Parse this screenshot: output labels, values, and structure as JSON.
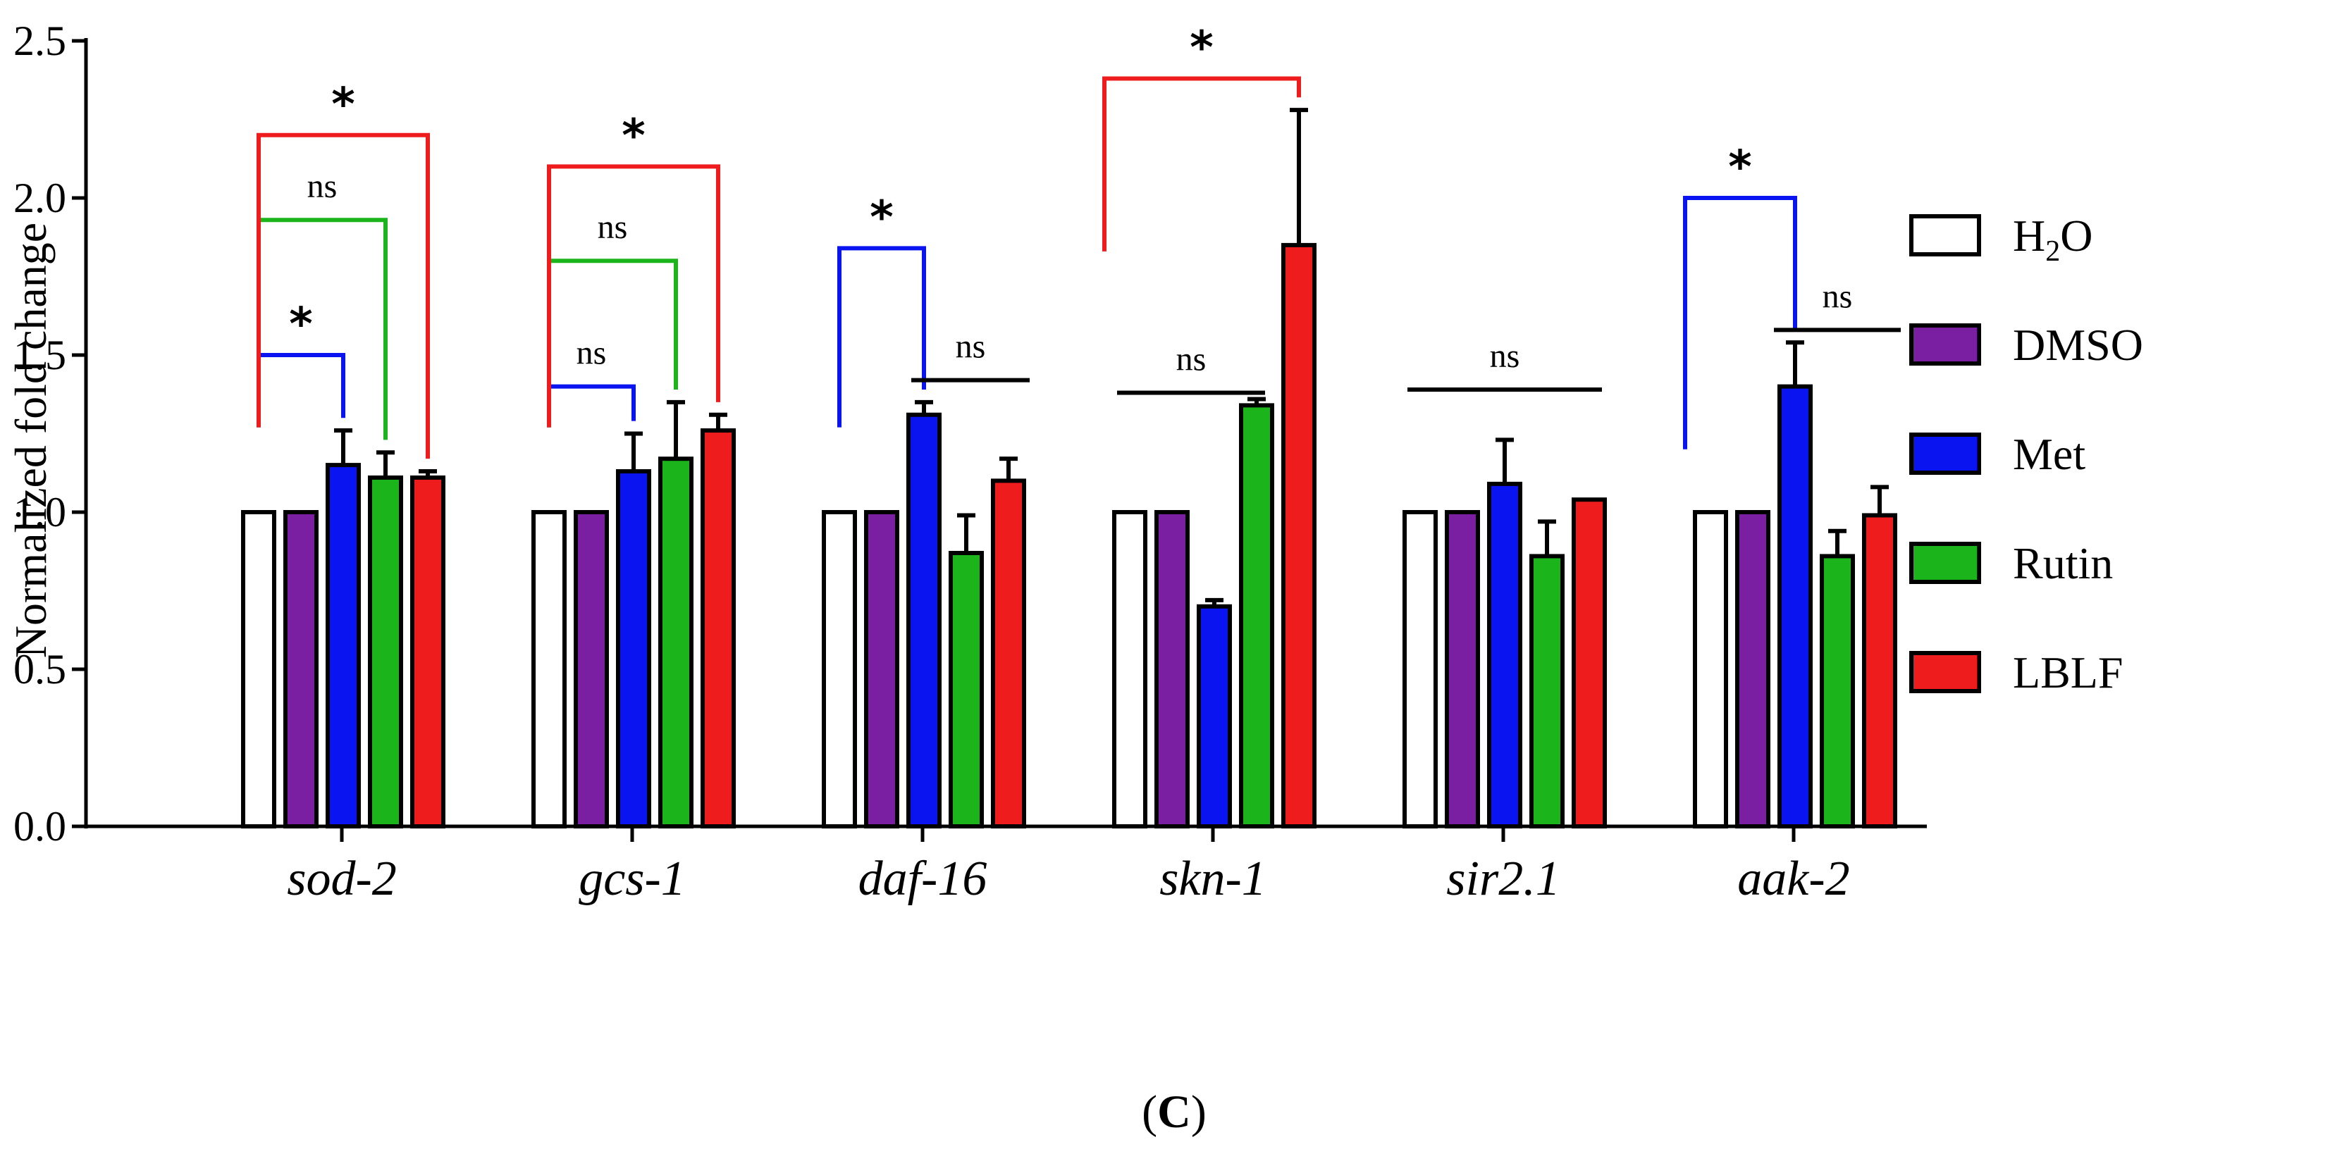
{
  "chart_data": {
    "type": "bar",
    "title": "",
    "xlabel": "",
    "ylabel": "Normalized fold change",
    "ylim": [
      0,
      2.5
    ],
    "yticks": [
      0.0,
      0.5,
      1.0,
      1.5,
      2.0,
      2.5
    ],
    "ytick_labels": [
      "0.0",
      "0.5",
      "1.0",
      "1.5",
      "2.0",
      "2.5"
    ],
    "grid": false,
    "legend_position": "right",
    "categories": [
      "sod-2",
      "gcs-1",
      "daf-16",
      "skn-1",
      "sir2.1",
      "aak-2"
    ],
    "series": [
      {
        "name": "H2O",
        "legend_main": "H",
        "legend_sub": "2",
        "legend_tail": "O",
        "color": "#ffffff",
        "values": [
          1.0,
          1.0,
          1.0,
          1.0,
          1.0,
          1.0
        ],
        "errors": [
          0,
          0,
          0,
          0,
          0,
          0
        ]
      },
      {
        "name": "DMSO",
        "legend_main": "DMSO",
        "legend_sub": "",
        "legend_tail": "",
        "color": "#7a1fa2",
        "values": [
          1.0,
          1.0,
          1.0,
          1.0,
          1.0,
          1.0
        ],
        "errors": [
          0,
          0,
          0,
          0,
          0,
          0
        ]
      },
      {
        "name": "Met",
        "legend_main": "Met",
        "legend_sub": "",
        "legend_tail": "",
        "color": "#0a14f0",
        "values": [
          1.15,
          1.13,
          1.31,
          0.7,
          1.09,
          1.4
        ],
        "errors": [
          0.11,
          0.12,
          0.04,
          0.02,
          0.14,
          0.14
        ]
      },
      {
        "name": "Rutin",
        "legend_main": "Rutin",
        "legend_sub": "",
        "legend_tail": "",
        "color": "#1bb51b",
        "values": [
          1.11,
          1.17,
          0.87,
          1.34,
          0.86,
          0.86
        ],
        "errors": [
          0.08,
          0.18,
          0.12,
          0.02,
          0.11,
          0.08
        ]
      },
      {
        "name": "LBLF",
        "legend_main": "LBLF",
        "legend_sub": "",
        "legend_tail": "",
        "color": "#ee1c1c",
        "values": [
          1.11,
          1.26,
          1.1,
          1.85,
          1.04,
          0.99
        ],
        "errors": [
          0.02,
          0.05,
          0.07,
          0.43,
          0.0,
          0.09
        ]
      }
    ],
    "annotations": [
      {
        "kind": "bracket",
        "category": 0,
        "from": 0,
        "to": 2,
        "y": 1.5,
        "label": "*",
        "color": "#0a14f0"
      },
      {
        "kind": "bracket",
        "category": 0,
        "from": 0,
        "to": 3,
        "y": 1.93,
        "label": "ns",
        "color": "#1bb51b"
      },
      {
        "kind": "bracket",
        "category": 0,
        "from": 0,
        "to": 4,
        "y": 2.2,
        "label": "*",
        "color": "#ee1c1c"
      },
      {
        "kind": "bracket",
        "category": 1,
        "from": 0,
        "to": 2,
        "y": 1.4,
        "label": "ns",
        "color": "#0a14f0"
      },
      {
        "kind": "bracket",
        "category": 1,
        "from": 0,
        "to": 3,
        "y": 1.8,
        "label": "ns",
        "color": "#1bb51b"
      },
      {
        "kind": "bracket",
        "category": 1,
        "from": 0,
        "to": 4,
        "y": 2.1,
        "label": "*",
        "color": "#ee1c1c"
      },
      {
        "kind": "bracket",
        "category": 2,
        "from": 0,
        "to": 2,
        "y": 1.84,
        "label": "*",
        "color": "#0a14f0"
      },
      {
        "kind": "line",
        "category": 2,
        "from": 1.7,
        "to": 4.5,
        "y": 1.42,
        "label": "ns",
        "color": "#000000"
      },
      {
        "kind": "line",
        "category": 3,
        "from": -0.3,
        "to": 3.2,
        "y": 1.38,
        "label": "ns",
        "color": "#000000"
      },
      {
        "kind": "bracket",
        "category": 3,
        "from": -0.6,
        "to": 4,
        "y": 2.38,
        "label": "*",
        "color": "#ee1c1c",
        "left_drop": 1.83
      },
      {
        "kind": "line",
        "category": 4,
        "from": -0.3,
        "to": 4.3,
        "y": 1.39,
        "label": "ns",
        "color": "#000000"
      },
      {
        "kind": "bracket",
        "category": 5,
        "from": -0.6,
        "to": 2,
        "y": 2.0,
        "label": "*",
        "color": "#0a14f0",
        "left_drop": 1.2
      },
      {
        "kind": "line",
        "category": 5,
        "from": 1.5,
        "to": 4.5,
        "y": 1.58,
        "label": "ns",
        "color": "#000000"
      }
    ]
  },
  "caption": {
    "main": "(",
    "letter": "C",
    "tail": ")"
  }
}
